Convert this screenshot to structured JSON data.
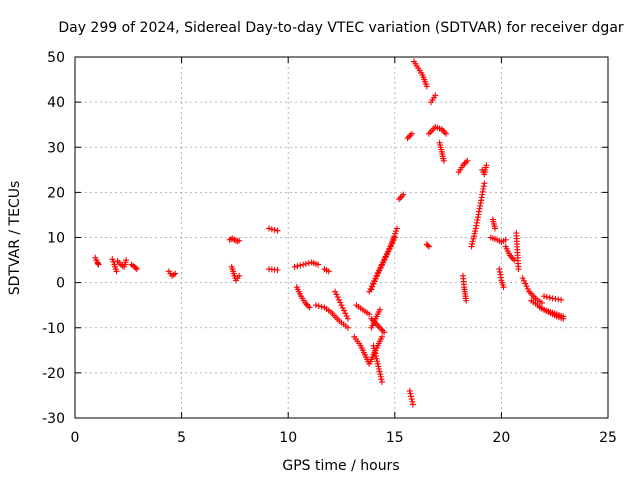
{
  "chart_data": {
    "type": "scatter",
    "title": "Day 299 of 2024, Sidereal Day-to-day VTEC variation (SDTVAR) for receiver dgar",
    "xlabel": "GPS time / hours",
    "ylabel": "SDTVAR / TECUs",
    "xlim": [
      0,
      25
    ],
    "ylim": [
      -30,
      50
    ],
    "xticks": [
      "0",
      "5",
      "10",
      "15",
      "20",
      "25"
    ],
    "yticks": [
      "-30",
      "-20",
      "-10",
      "0",
      "10",
      "20",
      "30",
      "40",
      "50"
    ],
    "grid": true,
    "marker": "+",
    "color": "#ff0000",
    "segments": [
      {
        "x": [
          0.95,
          1.05,
          1.1
        ],
        "y": [
          5.5,
          4.5,
          4.0
        ]
      },
      {
        "x": [
          1.75,
          1.85,
          1.95
        ],
        "y": [
          5.2,
          4.0,
          2.5
        ]
      },
      {
        "x": [
          2.0,
          2.15,
          2.3,
          2.4
        ],
        "y": [
          4.8,
          4.0,
          3.5,
          5.0
        ]
      },
      {
        "x": [
          2.65,
          2.8,
          2.9
        ],
        "y": [
          4.0,
          3.5,
          3.0
        ]
      },
      {
        "x": [
          4.4,
          4.55,
          4.7
        ],
        "y": [
          2.5,
          1.5,
          2.0
        ]
      },
      {
        "x": [
          7.25,
          7.4,
          7.55,
          7.7
        ],
        "y": [
          9.5,
          9.8,
          9.2,
          9.3
        ]
      },
      {
        "x": [
          7.35,
          7.45,
          7.55,
          7.7
        ],
        "y": [
          3.5,
          2.0,
          0.5,
          1.5
        ]
      },
      {
        "x": [
          9.1,
          9.5
        ],
        "y": [
          12.0,
          11.5
        ]
      },
      {
        "x": [
          9.1,
          9.5
        ],
        "y": [
          3.0,
          2.8
        ]
      },
      {
        "x": [
          10.3,
          10.7,
          11.1,
          11.4
        ],
        "y": [
          3.5,
          4.0,
          4.5,
          4.0
        ]
      },
      {
        "x": [
          11.7,
          11.9
        ],
        "y": [
          3.0,
          2.5
        ]
      },
      {
        "x": [
          10.4,
          10.6,
          10.8,
          11.0
        ],
        "y": [
          -1.0,
          -3.0,
          -4.5,
          -5.5
        ]
      },
      {
        "x": [
          11.3,
          11.7,
          12.0,
          12.4,
          12.8
        ],
        "y": [
          -5.0,
          -5.5,
          -6.5,
          -8.5,
          -10.0
        ]
      },
      {
        "x": [
          12.2,
          12.5,
          12.8
        ],
        "y": [
          -2.0,
          -5.0,
          -8.0
        ]
      },
      {
        "x": [
          13.1,
          13.4,
          13.6,
          13.8,
          14.0,
          14.2,
          14.4
        ],
        "y": [
          -12.0,
          -14.0,
          -16.0,
          -18.0,
          -16.0,
          -14.0,
          -12.0
        ]
      },
      {
        "x": [
          13.2,
          13.5,
          13.8
        ],
        "y": [
          -5.0,
          -6.0,
          -7.0
        ]
      },
      {
        "x": [
          13.9,
          14.1,
          14.3,
          14.5
        ],
        "y": [
          -8.0,
          -9.0,
          -10.0,
          -11.0
        ]
      },
      {
        "x": [
          14.0,
          14.2,
          14.4
        ],
        "y": [
          -14.0,
          -18.0,
          -22.0
        ]
      },
      {
        "x": [
          13.8,
          14.1,
          14.4,
          14.7,
          15.0
        ],
        "y": [
          -2.0,
          1.0,
          4.0,
          7.0,
          10.0
        ]
      },
      {
        "x": [
          13.9,
          14.2,
          14.5,
          14.8,
          15.1
        ],
        "y": [
          -1.5,
          2.0,
          5.0,
          8.0,
          12.0
        ]
      },
      {
        "x": [
          13.9,
          14.1,
          14.3
        ],
        "y": [
          -10.0,
          -8.0,
          -6.0
        ]
      },
      {
        "x": [
          15.2,
          15.4
        ],
        "y": [
          18.5,
          19.5
        ]
      },
      {
        "x": [
          15.6,
          15.8
        ],
        "y": [
          32.0,
          33.0
        ]
      },
      {
        "x": [
          15.7,
          15.85
        ],
        "y": [
          -24.0,
          -27.0
        ]
      },
      {
        "x": [
          15.9,
          16.1,
          16.3,
          16.5
        ],
        "y": [
          49.0,
          47.5,
          46.0,
          43.5
        ]
      },
      {
        "x": [
          16.5,
          16.6
        ],
        "y": [
          8.5,
          8.0
        ]
      },
      {
        "x": [
          16.7,
          16.9
        ],
        "y": [
          40.0,
          41.5
        ]
      },
      {
        "x": [
          16.6,
          16.9,
          17.2,
          17.4
        ],
        "y": [
          33.0,
          34.5,
          34.0,
          33.0
        ]
      },
      {
        "x": [
          17.1,
          17.2,
          17.3
        ],
        "y": [
          31.0,
          29.0,
          27.0
        ]
      },
      {
        "x": [
          18.0,
          18.2,
          18.4
        ],
        "y": [
          24.5,
          26.0,
          27.0
        ]
      },
      {
        "x": [
          18.2,
          18.25,
          18.3,
          18.35
        ],
        "y": [
          1.5,
          -1.0,
          -2.5,
          -4.0
        ]
      },
      {
        "x": [
          18.6,
          18.8,
          19.0,
          19.2
        ],
        "y": [
          8.0,
          12.0,
          17.0,
          22.0
        ]
      },
      {
        "x": [
          19.1,
          19.2,
          19.3
        ],
        "y": [
          25.0,
          24.0,
          26.0
        ]
      },
      {
        "x": [
          19.6,
          19.7
        ],
        "y": [
          14.0,
          12.0
        ]
      },
      {
        "x": [
          19.5,
          19.8,
          20.0,
          20.2
        ],
        "y": [
          10.0,
          9.5,
          9.0,
          9.5
        ]
      },
      {
        "x": [
          19.9,
          20.0,
          20.1
        ],
        "y": [
          3.0,
          0.5,
          -1.0
        ]
      },
      {
        "x": [
          20.2,
          20.4,
          20.6
        ],
        "y": [
          8.0,
          6.0,
          5.0
        ]
      },
      {
        "x": [
          20.7,
          20.8
        ],
        "y": [
          11.0,
          3.0
        ]
      },
      {
        "x": [
          21.0,
          21.3,
          21.6,
          21.9
        ],
        "y": [
          1.0,
          -2.0,
          -3.5,
          -4.5
        ]
      },
      {
        "x": [
          21.4,
          21.7,
          22.0,
          22.3,
          22.6,
          22.9
        ],
        "y": [
          -4.0,
          -5.0,
          -6.0,
          -6.5,
          -7.0,
          -7.5
        ]
      },
      {
        "x": [
          22.0,
          22.4,
          22.8
        ],
        "y": [
          -3.0,
          -3.5,
          -3.8
        ]
      },
      {
        "x": [
          21.8,
          22.2,
          22.6,
          22.9
        ],
        "y": [
          -5.5,
          -6.5,
          -7.5,
          -8.0
        ]
      }
    ]
  }
}
